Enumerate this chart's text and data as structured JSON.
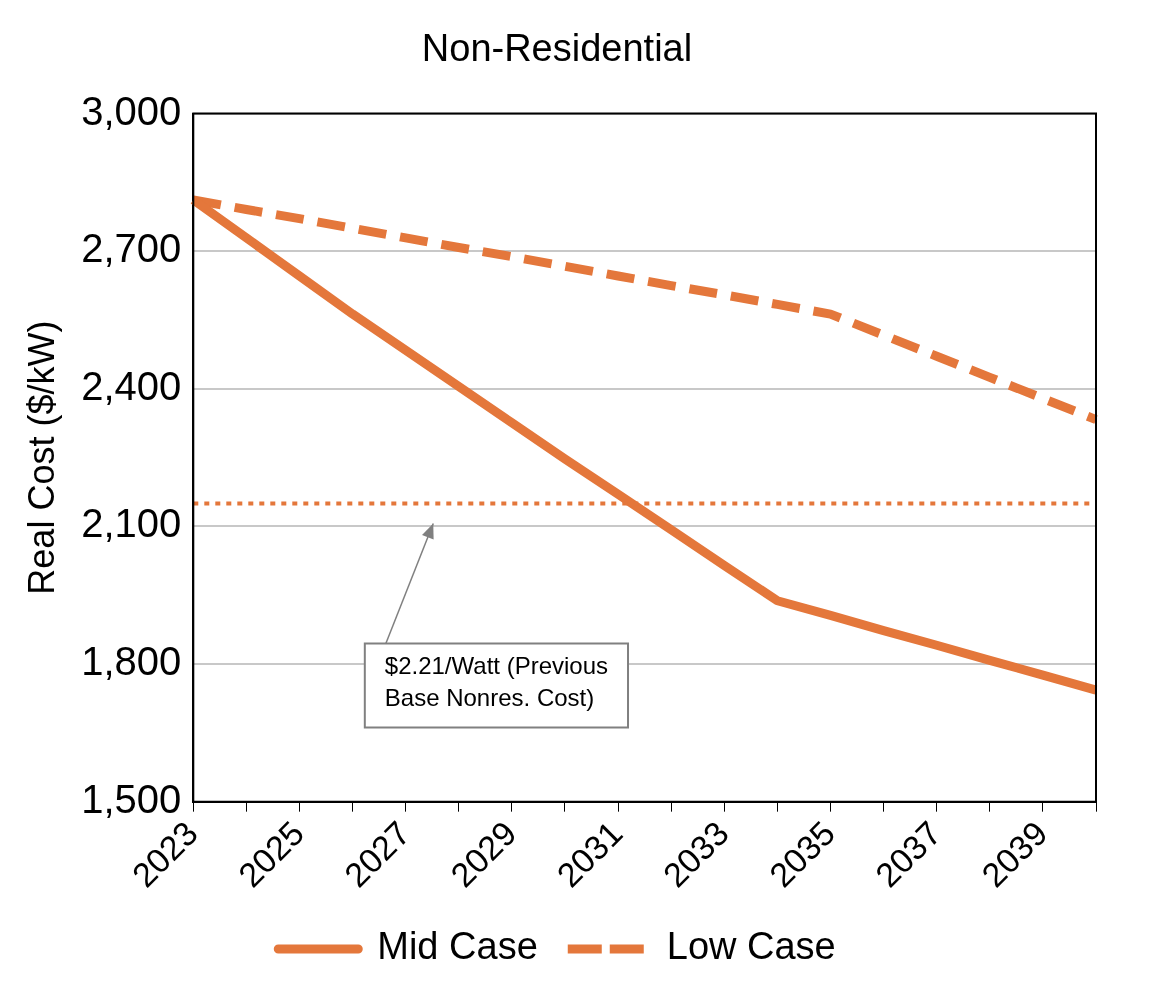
{
  "chart_data": {
    "type": "line",
    "title": "Non-Residential",
    "ylabel": "Real Cost ($/kW)",
    "categories": [
      "2023",
      null,
      "2025",
      null,
      "2027",
      null,
      "2029",
      null,
      "2031",
      null,
      "2033",
      null,
      "2035",
      null,
      "2037",
      null,
      "2039",
      null
    ],
    "series": [
      {
        "name": "Mid Case",
        "color": "#e4773b",
        "line_style": "solid",
        "values": [
          2812,
          2729,
          2646,
          2563,
          2484,
          2405,
          2326,
          2247,
          2170,
          2093,
          2015,
          1938,
          1906,
          1873,
          1841,
          1808,
          1776,
          1743
        ]
      },
      {
        "name": "Low Case",
        "color": "#e4773b",
        "line_style": "dashed",
        "values": [
          2812,
          2791,
          2771,
          2750,
          2729,
          2708,
          2688,
          2667,
          2646,
          2625,
          2605,
          2584,
          2563,
          2517,
          2471,
          2425,
          2379,
          2333
        ]
      }
    ],
    "ylim": [
      1500,
      3000
    ],
    "yticks": [
      {
        "value": 1500,
        "label": "1,500"
      },
      {
        "value": 1800,
        "label": "1,800"
      },
      {
        "value": 2100,
        "label": "2,100"
      },
      {
        "value": 2400,
        "label": "2,400"
      },
      {
        "value": 2700,
        "label": "2,700"
      },
      {
        "value": 3000,
        "label": "3,000"
      }
    ],
    "ref_lines": [
      {
        "axis": "y",
        "value": 2150,
        "color": "#e4773b",
        "line_style": "dotted"
      }
    ],
    "annotations": [
      "$2.21/Watt (Previous Base Nonres. Cost)"
    ],
    "grid": "y",
    "legend": "bottom",
    "marker": "none"
  }
}
